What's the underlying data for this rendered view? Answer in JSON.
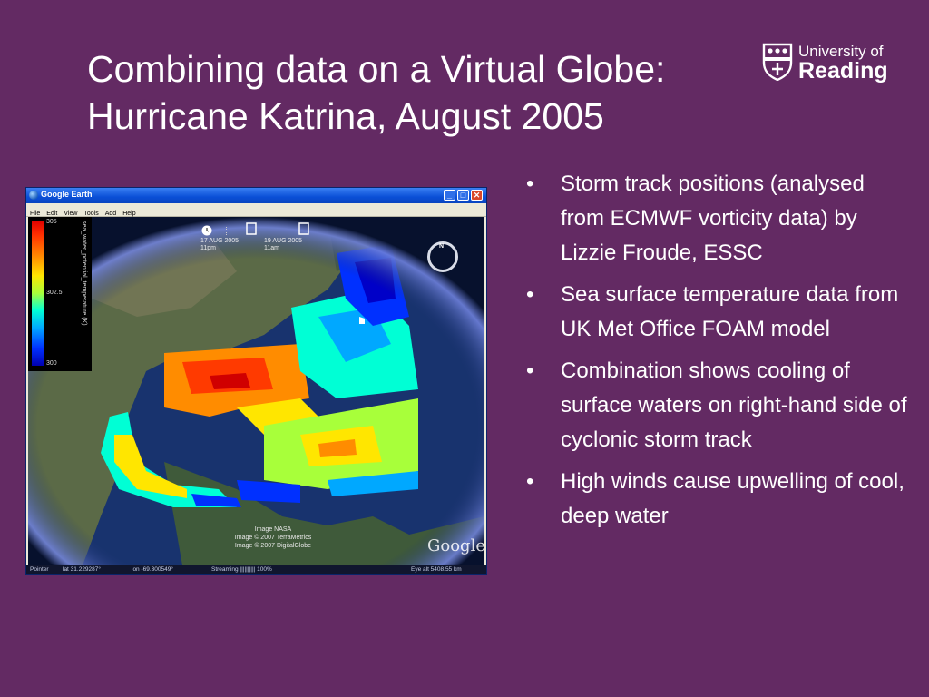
{
  "slide": {
    "title_line1": "Combining data on a Virtual Globe:",
    "title_line2": "Hurricane Katrina, August 2005",
    "logo": {
      "line1": "University of",
      "line2": "Reading"
    }
  },
  "google_earth": {
    "window_title": "Google Earth",
    "menu": [
      "File",
      "Edit",
      "View",
      "Tools",
      "Add",
      "Help"
    ],
    "window_buttons": {
      "minimize": "_",
      "maximize": "□",
      "close": "✕"
    },
    "legend": {
      "max": "305",
      "mid": "302.5",
      "min": "300",
      "label": "sea_water_potential_temperature (K)",
      "colors": [
        "#e00000",
        "#ff8c00",
        "#ffe600",
        "#a8ff3a",
        "#00ffd5",
        "#00a8ff",
        "#0030ff",
        "#0000b0"
      ]
    },
    "time_slider": {
      "start_date": "17 AUG 2005",
      "start_time": "11pm",
      "end_date": "19 AUG 2005",
      "end_time": "11am"
    },
    "nav": {
      "north": "N"
    },
    "credits": [
      "Image NASA",
      "Image © 2007 TerraMetrics",
      "Image © 2007 DigitalGlobe"
    ],
    "brand": "Google",
    "status": {
      "pointer": "Pointer",
      "lat": "lat  31.229287°",
      "lon": "lon  -69.300549°",
      "streaming": "Streaming  ||||||||||  100%",
      "eye_alt": "Eye alt   5408.55 km"
    }
  },
  "bullets": [
    "Storm track positions (analysed from ECMWF vorticity data) by Lizzie Froude, ESSC",
    "Sea surface temperature data from UK Met Office FOAM model",
    "Combination shows cooling of surface waters on right-hand side of cyclonic storm track",
    "High winds cause upwelling of cool, deep water"
  ],
  "bullet_symbol": "•",
  "colors": {
    "background": "#632a63",
    "text": "#ffffff"
  }
}
